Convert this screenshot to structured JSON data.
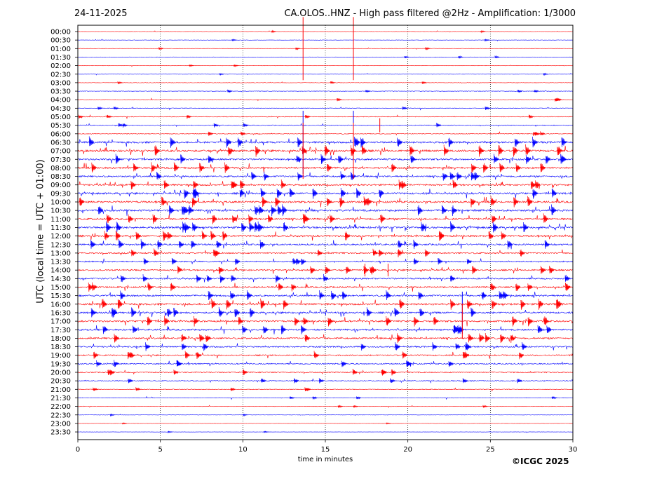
{
  "header": {
    "date": "24-11-2025",
    "title": "CA.OLOS..HNZ - High pass filtered @2Hz - Amplification: 1/3000"
  },
  "footer": {
    "copyright": "©ICGC 2025"
  },
  "chart_data": {
    "type": "line",
    "title": "CA.OLOS..HNZ - High pass filtered @2Hz - Amplification: 1/3000",
    "xlabel": "time in minutes",
    "ylabel": "UTC (local time = UTC + 01:00)",
    "xlim": [
      0,
      30
    ],
    "x_ticks": [
      0,
      5,
      10,
      15,
      20,
      25,
      30
    ],
    "x_gridlines": [
      5,
      10,
      15,
      20,
      25
    ],
    "grid": "vertical dotted",
    "row_labels": [
      "00:00",
      "00:30",
      "01:00",
      "01:30",
      "02:00",
      "02:30",
      "03:00",
      "03:30",
      "04:00",
      "04:30",
      "05:00",
      "05:30",
      "06:00",
      "06:30",
      "07:00",
      "07:30",
      "08:00",
      "08:30",
      "09:00",
      "09:30",
      "10:00",
      "10:30",
      "11:00",
      "11:30",
      "12:00",
      "12:30",
      "13:00",
      "13:30",
      "14:00",
      "14:30",
      "15:00",
      "15:30",
      "16:00",
      "16:30",
      "17:00",
      "17:30",
      "18:00",
      "18:30",
      "19:00",
      "19:30",
      "20:00",
      "20:30",
      "21:00",
      "21:30",
      "22:00",
      "22:30",
      "23:00",
      "23:30"
    ],
    "trace_colors": [
      "#ff0000",
      "#0000ff"
    ],
    "activity": [
      0.4,
      0.4,
      0.5,
      0.5,
      0.4,
      0.4,
      0.5,
      0.6,
      0.7,
      0.7,
      0.8,
      0.9,
      0.9,
      2.2,
      2.4,
      2.0,
      2.1,
      1.9,
      2.0,
      2.2,
      2.2,
      2.3,
      2.1,
      2.3,
      2.1,
      2.0,
      1.7,
      1.5,
      1.8,
      1.7,
      1.9,
      2.0,
      2.3,
      2.1,
      2.1,
      2.0,
      1.9,
      1.7,
      1.6,
      1.4,
      1.3,
      1.1,
      0.8,
      0.6,
      0.5,
      0.4,
      0.3,
      0.3
    ],
    "events": [
      {
        "row": 2,
        "minute": 13.65,
        "amplitude": 45,
        "color": "#ff0000"
      },
      {
        "row": 13,
        "minute": 13.65,
        "amplitude": 45,
        "color": "#0000ff"
      },
      {
        "row": 14,
        "minute": 13.65,
        "amplitude": 40,
        "color": "#ff0000"
      },
      {
        "row": 2,
        "minute": 16.7,
        "amplitude": 45,
        "color": "#ff0000"
      },
      {
        "row": 13,
        "minute": 16.7,
        "amplitude": 45,
        "color": "#0000ff"
      },
      {
        "row": 14,
        "minute": 16.7,
        "amplitude": 40,
        "color": "#ff0000"
      },
      {
        "row": 11,
        "minute": 18.3,
        "amplitude": 10,
        "color": "#ff0000"
      },
      {
        "row": 28,
        "minute": 17.4,
        "amplitude": 9,
        "color": "#ff0000"
      },
      {
        "row": 28,
        "minute": 18.8,
        "amplitude": 9,
        "color": "#ff0000"
      },
      {
        "row": 33,
        "minute": 23.3,
        "amplitude": 30,
        "color": "#0000ff"
      },
      {
        "row": 34,
        "minute": 23.3,
        "amplitude": 25,
        "color": "#ff0000"
      }
    ]
  }
}
